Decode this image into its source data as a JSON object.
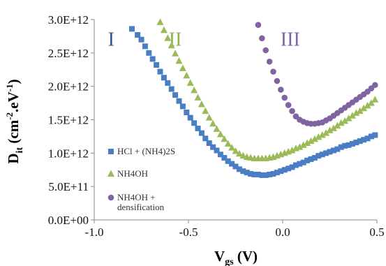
{
  "chart_data": {
    "type": "scatter",
    "ylabel_main": "D",
    "ylabel_sub": "it",
    "ylabel_unit_open": " (cm",
    "ylabel_exp1": "-2",
    "ylabel_mid": ".eV",
    "ylabel_exp2": "-1",
    "ylabel_close": ")",
    "xlabel_main": "V",
    "xlabel_sub": "gs",
    "xlabel_unit": " (V)",
    "xlim": [
      -1.0,
      0.5
    ],
    "ylim": [
      0,
      3000000000000.0
    ],
    "x_ticks": [
      "-1.0",
      "-0.5",
      "0.0",
      "0.5"
    ],
    "x_tick_values": [
      -1.0,
      -0.5,
      0.0,
      0.5
    ],
    "y_ticks": [
      "0.0E+00",
      "5.0E+11",
      "1.0E+12",
      "1.5E+12",
      "2.0E+12",
      "2.5E+12",
      "3.0E+12"
    ],
    "y_tick_values": [
      0,
      500000000000.0,
      1000000000000.0,
      1500000000000.0,
      2000000000000.0,
      2500000000000.0,
      3000000000000.0
    ],
    "region_labels": [
      {
        "text": "I",
        "x": -0.91,
        "y": 2700000000000.0,
        "color": "#2f5597"
      },
      {
        "text": "II",
        "x": -0.57,
        "y": 2700000000000.0,
        "color": "#8db54a"
      },
      {
        "text": "III",
        "x": 0.04,
        "y": 2700000000000.0,
        "color": "#8064a2"
      }
    ],
    "series": [
      {
        "name": "HCl + (NH4)2S",
        "marker": "square",
        "color": "#4a7ec4",
        "x": [
          -0.8,
          -0.77,
          -0.75,
          -0.73,
          -0.71,
          -0.69,
          -0.67,
          -0.65,
          -0.63,
          -0.61,
          -0.59,
          -0.57,
          -0.55,
          -0.53,
          -0.51,
          -0.49,
          -0.47,
          -0.45,
          -0.43,
          -0.41,
          -0.39,
          -0.37,
          -0.35,
          -0.33,
          -0.31,
          -0.29,
          -0.27,
          -0.25,
          -0.23,
          -0.21,
          -0.19,
          -0.17,
          -0.15,
          -0.13,
          -0.11,
          -0.09,
          -0.07,
          -0.05,
          -0.03,
          -0.01,
          0.01,
          0.03,
          0.05,
          0.07,
          0.09,
          0.11,
          0.13,
          0.15,
          0.17,
          0.19,
          0.21,
          0.23,
          0.25,
          0.27,
          0.29,
          0.31,
          0.33,
          0.35,
          0.37,
          0.39,
          0.41,
          0.43,
          0.45,
          0.47,
          0.49
        ],
        "y": [
          2860000000000.0,
          2770000000000.0,
          2700000000000.0,
          2600000000000.0,
          2500000000000.0,
          2410000000000.0,
          2320000000000.0,
          2220000000000.0,
          2130000000000.0,
          2050000000000.0,
          1960000000000.0,
          1870000000000.0,
          1780000000000.0,
          1700000000000.0,
          1610000000000.0,
          1530000000000.0,
          1450000000000.0,
          1370000000000.0,
          1300000000000.0,
          1220000000000.0,
          1150000000000.0,
          1090000000000.0,
          1040000000000.0,
          980000000000.0,
          930000000000.0,
          880000000000.0,
          840000000000.0,
          800000000000.0,
          760000000000.0,
          730000000000.0,
          710000000000.0,
          690000000000.0,
          680000000000.0,
          680000000000.0,
          670000000000.0,
          670000000000.0,
          680000000000.0,
          690000000000.0,
          710000000000.0,
          730000000000.0,
          750000000000.0,
          770000000000.0,
          790000000000.0,
          820000000000.0,
          840000000000.0,
          860000000000.0,
          890000000000.0,
          910000000000.0,
          930000000000.0,
          960000000000.0,
          980000000000.0,
          1000000000000.0,
          1020000000000.0,
          1040000000000.0,
          1060000000000.0,
          1090000000000.0,
          1110000000000.0,
          1120000000000.0,
          1140000000000.0,
          1160000000000.0,
          1180000000000.0,
          1200000000000.0,
          1220000000000.0,
          1250000000000.0,
          1270000000000.0
        ]
      },
      {
        "name": "NH4OH",
        "marker": "triangle",
        "color": "#9bbb59",
        "x": [
          -0.65,
          -0.63,
          -0.61,
          -0.59,
          -0.57,
          -0.55,
          -0.53,
          -0.51,
          -0.49,
          -0.47,
          -0.45,
          -0.43,
          -0.41,
          -0.39,
          -0.37,
          -0.35,
          -0.33,
          -0.31,
          -0.29,
          -0.27,
          -0.25,
          -0.23,
          -0.21,
          -0.19,
          -0.17,
          -0.15,
          -0.13,
          -0.11,
          -0.09,
          -0.07,
          -0.05,
          -0.03,
          -0.01,
          0.01,
          0.03,
          0.05,
          0.07,
          0.09,
          0.11,
          0.13,
          0.15,
          0.17,
          0.19,
          0.21,
          0.23,
          0.25,
          0.27,
          0.29,
          0.31,
          0.33,
          0.35,
          0.37,
          0.39,
          0.41,
          0.43,
          0.45,
          0.47,
          0.49
        ],
        "y": [
          2960000000000.0,
          2840000000000.0,
          2720000000000.0,
          2610000000000.0,
          2490000000000.0,
          2380000000000.0,
          2270000000000.0,
          2160000000000.0,
          2050000000000.0,
          1940000000000.0,
          1830000000000.0,
          1730000000000.0,
          1630000000000.0,
          1530000000000.0,
          1440000000000.0,
          1360000000000.0,
          1280000000000.0,
          1210000000000.0,
          1140000000000.0,
          1080000000000.0,
          1030000000000.0,
          990000000000.0,
          960000000000.0,
          940000000000.0,
          930000000000.0,
          920000000000.0,
          920000000000.0,
          920000000000.0,
          920000000000.0,
          930000000000.0,
          940000000000.0,
          960000000000.0,
          980000000000.0,
          1000000000000.0,
          1020000000000.0,
          1040000000000.0,
          1070000000000.0,
          1090000000000.0,
          1120000000000.0,
          1150000000000.0,
          1180000000000.0,
          1210000000000.0,
          1240000000000.0,
          1270000000000.0,
          1300000000000.0,
          1340000000000.0,
          1370000000000.0,
          1410000000000.0,
          1450000000000.0,
          1480000000000.0,
          1520000000000.0,
          1560000000000.0,
          1600000000000.0,
          1630000000000.0,
          1670000000000.0,
          1710000000000.0,
          1750000000000.0,
          1800000000000.0
        ]
      },
      {
        "name": "NH4OH + densification",
        "marker": "circle",
        "color": "#8064a2",
        "x": [
          -0.13,
          -0.11,
          -0.09,
          -0.07,
          -0.05,
          -0.03,
          -0.01,
          0.01,
          0.03,
          0.05,
          0.07,
          0.09,
          0.11,
          0.13,
          0.15,
          0.17,
          0.19,
          0.21,
          0.23,
          0.25,
          0.27,
          0.29,
          0.31,
          0.33,
          0.35,
          0.37,
          0.39,
          0.41,
          0.43,
          0.45,
          0.47,
          0.49
        ],
        "y": [
          2920000000000.0,
          2720000000000.0,
          2540000000000.0,
          2370000000000.0,
          2220000000000.0,
          2080000000000.0,
          1950000000000.0,
          1830000000000.0,
          1720000000000.0,
          1630000000000.0,
          1550000000000.0,
          1500000000000.0,
          1470000000000.0,
          1450000000000.0,
          1440000000000.0,
          1440000000000.0,
          1450000000000.0,
          1460000000000.0,
          1490000000000.0,
          1520000000000.0,
          1560000000000.0,
          1600000000000.0,
          1640000000000.0,
          1680000000000.0,
          1720000000000.0,
          1760000000000.0,
          1800000000000.0,
          1840000000000.0,
          1880000000000.0,
          1920000000000.0,
          1970000000000.0,
          2020000000000.0
        ]
      }
    ],
    "legend": [
      {
        "lines": [
          "HCl + (NH4)2S"
        ],
        "marker": "square",
        "color": "#4a7ec4"
      },
      {
        "lines": [
          "NH4OH"
        ],
        "marker": "triangle",
        "color": "#9bbb59"
      },
      {
        "lines": [
          "NH4OH +",
          "densification"
        ],
        "marker": "circle",
        "color": "#8064a2"
      }
    ],
    "legend_position": "inside-left",
    "grid": false
  }
}
